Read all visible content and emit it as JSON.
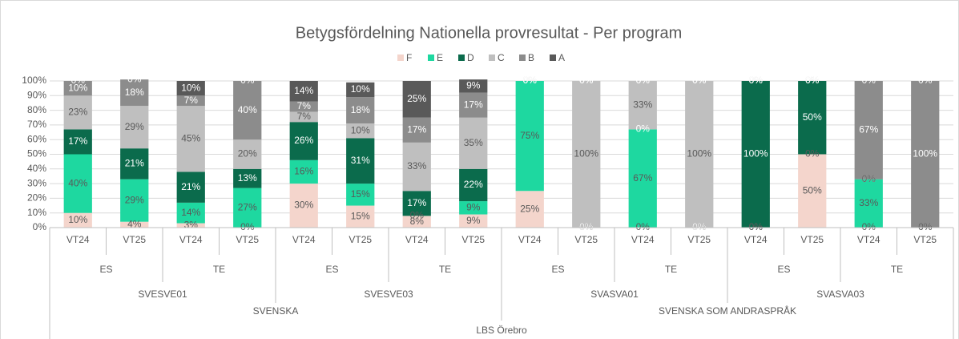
{
  "chart_data": {
    "type": "stacked_bar_100",
    "title": "Betygsfördelning Nationella provresultat - Per program",
    "categories": [
      "VT24",
      "VT25",
      "VT24",
      "VT25",
      "VT24",
      "VT25",
      "VT24",
      "VT25",
      "VT24",
      "VT25",
      "VT24",
      "VT25",
      "VT24",
      "VT25",
      "VT24",
      "VT25"
    ],
    "category_groups": [
      [
        "ES",
        "TE",
        "ES",
        "TE",
        "ES",
        "TE",
        "ES",
        "TE"
      ],
      [
        "SVESVE01",
        "SVESVE03",
        "SVASVA01",
        "SVASVA03"
      ],
      [
        "SVENSKA",
        "SVENSKA SOM ANDRASPRÅK"
      ],
      [
        "LBS Örebro"
      ]
    ],
    "series": [
      {
        "name": "F",
        "color": "#f4d5cc",
        "values": [
          10,
          4,
          3,
          0,
          30,
          15,
          8,
          9,
          25,
          0,
          0,
          0,
          0,
          50,
          0,
          0
        ],
        "value_labels": [
          "10%",
          "4%",
          "3%",
          "0%",
          "30%",
          "15%",
          "8%",
          "9%",
          "25%",
          "0%",
          "0%",
          "0%",
          "0%",
          "50%",
          "0%",
          "0%"
        ]
      },
      {
        "name": "E",
        "color": "#1ed8a0",
        "values": [
          40,
          29,
          14,
          27,
          16,
          15,
          0,
          9,
          75,
          0,
          67,
          0,
          0,
          0,
          33,
          0
        ],
        "value_labels": [
          "40%",
          "29%",
          "14%",
          "27%",
          "16%",
          "15%",
          "0%",
          "9%",
          "75%",
          "0%",
          "67%",
          "0%",
          "0%",
          "0%",
          "33%",
          "0%"
        ]
      },
      {
        "name": "D",
        "color": "#0b6b4c",
        "values": [
          17,
          21,
          21,
          13,
          26,
          31,
          17,
          22,
          0,
          0,
          0,
          0,
          100,
          50,
          0,
          0
        ],
        "value_labels": [
          "17%",
          "21%",
          "21%",
          "13%",
          "26%",
          "31%",
          "17%",
          "22%",
          "0%",
          "0%",
          "0%",
          "0%",
          "100%",
          "50%",
          "0%",
          "0%"
        ]
      },
      {
        "name": "C",
        "color": "#bfbfbf",
        "values": [
          23,
          29,
          45,
          20,
          7,
          10,
          33,
          35,
          0,
          100,
          33,
          100,
          0,
          0,
          0,
          0
        ],
        "value_labels": [
          "23%",
          "29%",
          "45%",
          "20%",
          "7%",
          "10%",
          "33%",
          "35%",
          "0%",
          "100%",
          "33%",
          "100%",
          "0%",
          "0%",
          "0%",
          "0%"
        ]
      },
      {
        "name": "B",
        "color": "#8c8c8c",
        "values": [
          10,
          18,
          7,
          40,
          7,
          18,
          17,
          17,
          0,
          0,
          0,
          0,
          0,
          0,
          67,
          100
        ],
        "value_labels": [
          "10%",
          "18%",
          "7%",
          "40%",
          "7%",
          "18%",
          "17%",
          "17%",
          "0%",
          "0%",
          "0%",
          "0%",
          "0%",
          "0%",
          "67%",
          "100%"
        ]
      },
      {
        "name": "A",
        "color": "#595959",
        "values": [
          0,
          0,
          10,
          0,
          14,
          10,
          25,
          9,
          0,
          0,
          0,
          0,
          0,
          0,
          0,
          0
        ],
        "value_labels": [
          "0%",
          "0%",
          "10%",
          "0%",
          "14%",
          "10%",
          "25%",
          "9%",
          "0%",
          "0%",
          "0%",
          "0%",
          "0%",
          "0%",
          "0%",
          "0%"
        ]
      }
    ],
    "ylim": [
      0,
      100
    ],
    "yticks": [
      {
        "value": 0,
        "label": "0%"
      },
      {
        "value": 10,
        "label": "10%"
      },
      {
        "value": 20,
        "label": "20%"
      },
      {
        "value": 30,
        "label": "30%"
      },
      {
        "value": 40,
        "label": "40%"
      },
      {
        "value": 50,
        "label": "50%"
      },
      {
        "value": 60,
        "label": "60%"
      },
      {
        "value": 70,
        "label": "70%"
      },
      {
        "value": 80,
        "label": "80%"
      },
      {
        "value": 90,
        "label": "90%"
      },
      {
        "value": 100,
        "label": "100%"
      }
    ],
    "grid": true,
    "legend": "top"
  }
}
